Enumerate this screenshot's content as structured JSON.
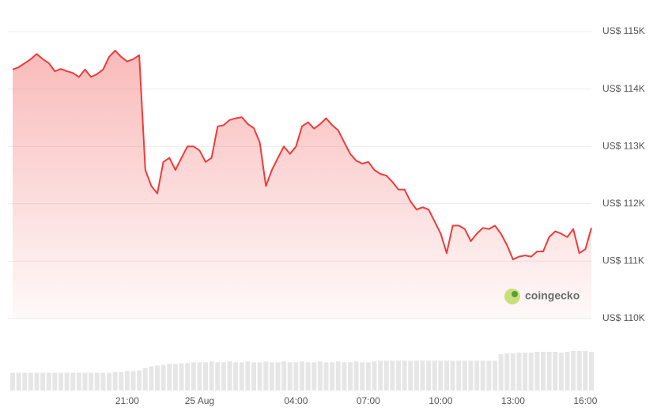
{
  "chart_data": {
    "type": "area",
    "series": [
      {
        "name": "Price",
        "color": "#ef3b3b",
        "values": [
          114340,
          114380,
          114450,
          114520,
          114610,
          114520,
          114450,
          114310,
          114350,
          114310,
          114280,
          114210,
          114340,
          114210,
          114260,
          114340,
          114560,
          114670,
          114560,
          114480,
          114520,
          114590,
          112590,
          112310,
          112180,
          112730,
          112800,
          112590,
          112800,
          113000,
          113000,
          112930,
          112730,
          112800,
          113350,
          113370,
          113460,
          113490,
          113510,
          113390,
          113320,
          113070,
          112310,
          112590,
          112800,
          113000,
          112870,
          113000,
          113350,
          113420,
          113310,
          113390,
          113490,
          113370,
          113280,
          113070,
          112870,
          112750,
          112700,
          112730,
          112590,
          112520,
          112490,
          112380,
          112250,
          112250,
          112040,
          111900,
          111940,
          111900,
          111690,
          111480,
          111140,
          111620,
          111620,
          111560,
          111350,
          111480,
          111580,
          111560,
          111620,
          111480,
          111280,
          111030,
          111080,
          111100,
          111080,
          111170,
          111170,
          111420,
          111520,
          111480,
          111420,
          111560,
          111140,
          111210,
          111580
        ]
      }
    ],
    "volume": {
      "color": "#e6e6e6",
      "values": [
        22,
        22,
        22,
        22,
        22,
        22,
        22,
        22,
        22,
        22,
        22,
        22,
        22,
        22,
        22,
        22,
        22,
        23,
        23,
        24,
        24,
        25,
        28,
        30,
        31,
        32,
        33,
        33,
        34,
        34,
        35,
        35,
        35,
        36,
        35,
        35,
        36,
        35,
        35,
        36,
        35,
        35,
        36,
        35,
        35,
        36,
        35,
        35,
        36,
        35,
        35,
        36,
        35,
        35,
        36,
        35,
        35,
        36,
        35,
        35,
        36,
        37,
        37,
        37,
        37,
        37,
        37,
        37,
        37,
        37,
        37,
        37,
        37,
        37,
        37,
        37,
        37,
        37,
        37,
        37,
        37,
        45,
        46,
        46,
        47,
        47,
        47,
        48,
        48,
        48,
        48,
        47,
        48,
        49,
        49,
        49,
        48
      ]
    },
    "categories": [
      null,
      null,
      null,
      null,
      null,
      null,
      null,
      null,
      null,
      null,
      null,
      null,
      null,
      null,
      null,
      null,
      null,
      null,
      null,
      "21:00",
      null,
      null,
      null,
      null,
      null,
      null,
      null,
      null,
      null,
      null,
      null,
      "25 Aug",
      null,
      null,
      null,
      null,
      null,
      null,
      null,
      null,
      null,
      null,
      null,
      null,
      null,
      null,
      null,
      "04:00",
      null,
      null,
      null,
      null,
      null,
      null,
      null,
      null,
      null,
      null,
      null,
      "07:00",
      null,
      null,
      null,
      null,
      null,
      null,
      null,
      null,
      null,
      null,
      null,
      "10:00",
      null,
      null,
      null,
      null,
      null,
      null,
      null,
      null,
      null,
      null,
      null,
      "13:00",
      null,
      null,
      null,
      null,
      null,
      null,
      null,
      null,
      null,
      null,
      null,
      "16:00",
      null
    ],
    "ylim": [
      110000,
      115000
    ],
    "yticks": [
      {
        "value": 110000,
        "label": "US$ 110K"
      },
      {
        "value": 111000,
        "label": "US$ 111K"
      },
      {
        "value": 112000,
        "label": "US$ 112K"
      },
      {
        "value": 113000,
        "label": "US$ 113K"
      },
      {
        "value": 114000,
        "label": "US$ 114K"
      },
      {
        "value": 115000,
        "label": "US$ 115K"
      }
    ],
    "grid": true,
    "watermark": "coingecko"
  }
}
